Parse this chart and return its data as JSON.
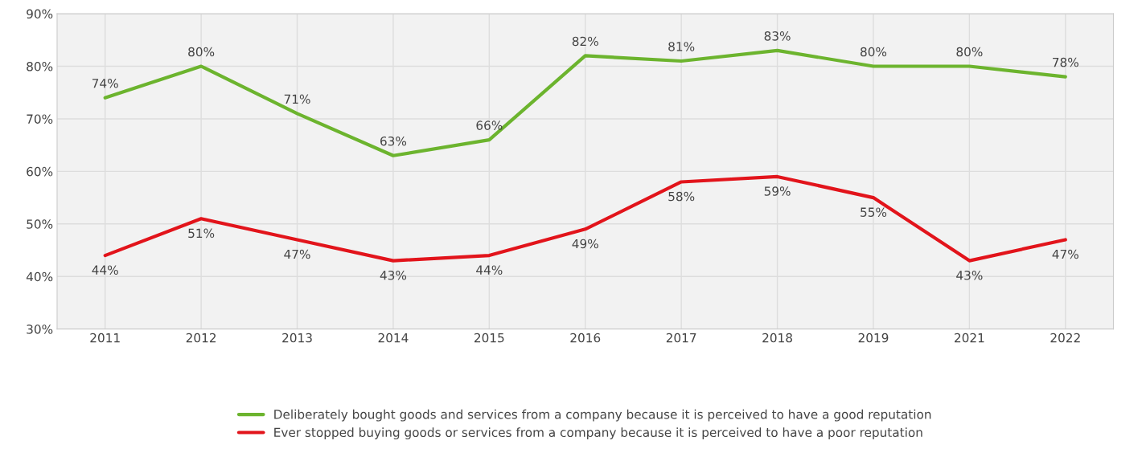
{
  "chart_data": {
    "type": "line",
    "categories": [
      "2011",
      "2012",
      "2013",
      "2014",
      "2015",
      "2016",
      "2017",
      "2018",
      "2019",
      "2021",
      "2022"
    ],
    "series": [
      {
        "name": "Deliberately bought goods and services from a company because it is perceived to have a good reputation",
        "color": "#6cb42e",
        "values": [
          74,
          80,
          71,
          63,
          66,
          82,
          81,
          83,
          80,
          80,
          78
        ],
        "value_labels": [
          "74%",
          "80%",
          "71%",
          "63%",
          "66%",
          "82%",
          "81%",
          "83%",
          "80%",
          "80%",
          "78%"
        ]
      },
      {
        "name": "Ever stopped buying goods or services from a company because it is perceived to have a poor reputation",
        "color": "#e2141b",
        "values": [
          44,
          51,
          47,
          43,
          44,
          49,
          58,
          59,
          55,
          43,
          47
        ],
        "value_labels": [
          "44%",
          "51%",
          "47%",
          "43%",
          "44%",
          "49%",
          "58%",
          "59%",
          "55%",
          "43%",
          "47%"
        ]
      }
    ],
    "ylim": [
      30,
      90
    ],
    "yticks": [
      {
        "value": 30,
        "label": "30%"
      },
      {
        "value": 40,
        "label": "40%"
      },
      {
        "value": 50,
        "label": "50%"
      },
      {
        "value": 60,
        "label": "60%"
      },
      {
        "value": 70,
        "label": "70%"
      },
      {
        "value": 80,
        "label": "80%"
      },
      {
        "value": 90,
        "label": "90%"
      }
    ],
    "grid": true,
    "legend": "bottom",
    "marker": "none",
    "line_style": "solid"
  }
}
